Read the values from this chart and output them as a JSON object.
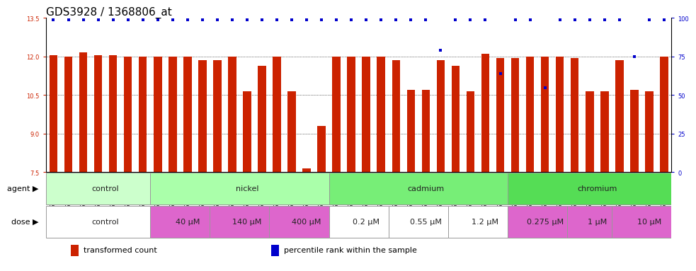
{
  "title": "GDS3928 / 1368806_at",
  "categories": [
    "GSM782280",
    "GSM782281",
    "GSM782291",
    "GSM782302",
    "GSM782303",
    "GSM782313",
    "GSM782314",
    "GSM782282",
    "GSM782293",
    "GSM782304",
    "GSM782315",
    "GSM782283",
    "GSM782294",
    "GSM782305",
    "GSM782316",
    "GSM782284",
    "GSM782295",
    "GSM782306",
    "GSM782317",
    "GSM782288",
    "GSM782299",
    "GSM782310",
    "GSM782321",
    "GSM782289",
    "GSM782300",
    "GSM782311",
    "GSM782322",
    "GSM782290",
    "GSM782301",
    "GSM782312",
    "GSM782323",
    "GSM782285",
    "GSM782296",
    "GSM782307",
    "GSM782318",
    "GSM782297",
    "GSM782308",
    "GSM782319",
    "GSM782287",
    "GSM782298",
    "GSM782309",
    "GSM782320"
  ],
  "bar_values": [
    12.05,
    12.0,
    12.15,
    12.05,
    12.05,
    12.0,
    12.0,
    12.0,
    12.0,
    12.0,
    11.85,
    11.85,
    12.0,
    10.65,
    11.65,
    12.0,
    10.65,
    7.65,
    9.3,
    12.0,
    12.0,
    12.0,
    12.0,
    11.85,
    10.7,
    10.7,
    11.85,
    11.65,
    10.65,
    12.1,
    11.95,
    11.95,
    12.0,
    12.0,
    12.0,
    11.95,
    10.65,
    10.65,
    11.85,
    10.7,
    10.65,
    12.0
  ],
  "percentile_values": [
    99,
    99,
    99,
    99,
    99,
    99,
    99,
    99,
    99,
    99,
    99,
    99,
    99,
    99,
    99,
    99,
    99,
    99,
    99,
    99,
    99,
    99,
    99,
    99,
    99,
    99,
    79,
    99,
    99,
    99,
    64,
    99,
    99,
    55,
    99,
    99,
    99,
    99,
    99,
    75,
    99,
    99
  ],
  "ylim_left": [
    7.5,
    13.5
  ],
  "ylim_right": [
    0,
    100
  ],
  "yticks_left": [
    7.5,
    9.0,
    10.5,
    12.0,
    13.5
  ],
  "yticks_right": [
    0,
    25,
    50,
    75,
    100
  ],
  "bar_color": "#cc2200",
  "percentile_color": "#0000cc",
  "bar_width": 0.55,
  "agent_groups": [
    {
      "label": "control",
      "start": 0,
      "end": 7,
      "color": "#ccffcc"
    },
    {
      "label": "nickel",
      "start": 7,
      "end": 19,
      "color": "#aaffaa"
    },
    {
      "label": "cadmium",
      "start": 19,
      "end": 31,
      "color": "#77ee77"
    },
    {
      "label": "chromium",
      "start": 31,
      "end": 42,
      "color": "#55dd55"
    }
  ],
  "dose_groups": [
    {
      "label": "control",
      "start": 0,
      "end": 7,
      "color": "#ffffff"
    },
    {
      "label": "40 μM",
      "start": 7,
      "end": 11,
      "color": "#dd66cc"
    },
    {
      "label": "140 μM",
      "start": 11,
      "end": 15,
      "color": "#dd66cc"
    },
    {
      "label": "400 μM",
      "start": 15,
      "end": 19,
      "color": "#dd66cc"
    },
    {
      "label": "0.2 μM",
      "start": 19,
      "end": 23,
      "color": "#ffffff"
    },
    {
      "label": "0.55 μM",
      "start": 23,
      "end": 27,
      "color": "#ffffff"
    },
    {
      "label": "1.2 μM",
      "start": 27,
      "end": 31,
      "color": "#ffffff"
    },
    {
      "label": "0.275 μM",
      "start": 31,
      "end": 35,
      "color": "#dd66cc"
    },
    {
      "label": "1 μM",
      "start": 35,
      "end": 38,
      "color": "#dd66cc"
    },
    {
      "label": "10 μM",
      "start": 38,
      "end": 42,
      "color": "#dd66cc"
    }
  ],
  "legend_items": [
    {
      "label": "transformed count",
      "color": "#cc2200"
    },
    {
      "label": "percentile rank within the sample",
      "color": "#0000cc"
    }
  ],
  "title_fontsize": 11,
  "tick_fontsize": 6,
  "label_fontsize": 8,
  "annot_fontsize": 8
}
